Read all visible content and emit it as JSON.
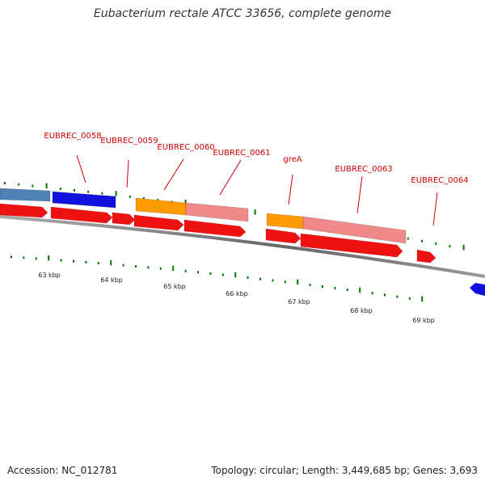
{
  "title": "Eubacterium rectale ATCC 33656, complete genome",
  "accession": "Accession: NC_012781",
  "topology": "Topology: circular; Length: 3,449,685 bp; Genes: 3,693",
  "colors": {
    "gene_label": "#cc0000",
    "feature_red": "#ee1111",
    "feature_blue": "#1111dd",
    "feature_steelblue": "#4f82b4",
    "feature_orange": "#ff9a00",
    "feature_salmon": "#f08a8a",
    "tick_green": "#007700",
    "backbone": "#777777"
  },
  "gene_labels": [
    "EUBREC_0058",
    "EUBREC_0059",
    "EUBREC_0060",
    "EUBREC_0061",
    "greA",
    "EUBREC_0063",
    "EUBREC_0064"
  ],
  "kbp_labels": [
    "63 kbp",
    "64 kbp",
    "65 kbp",
    "66 kbp",
    "67 kbp",
    "68 kbp",
    "69 kbp"
  ]
}
